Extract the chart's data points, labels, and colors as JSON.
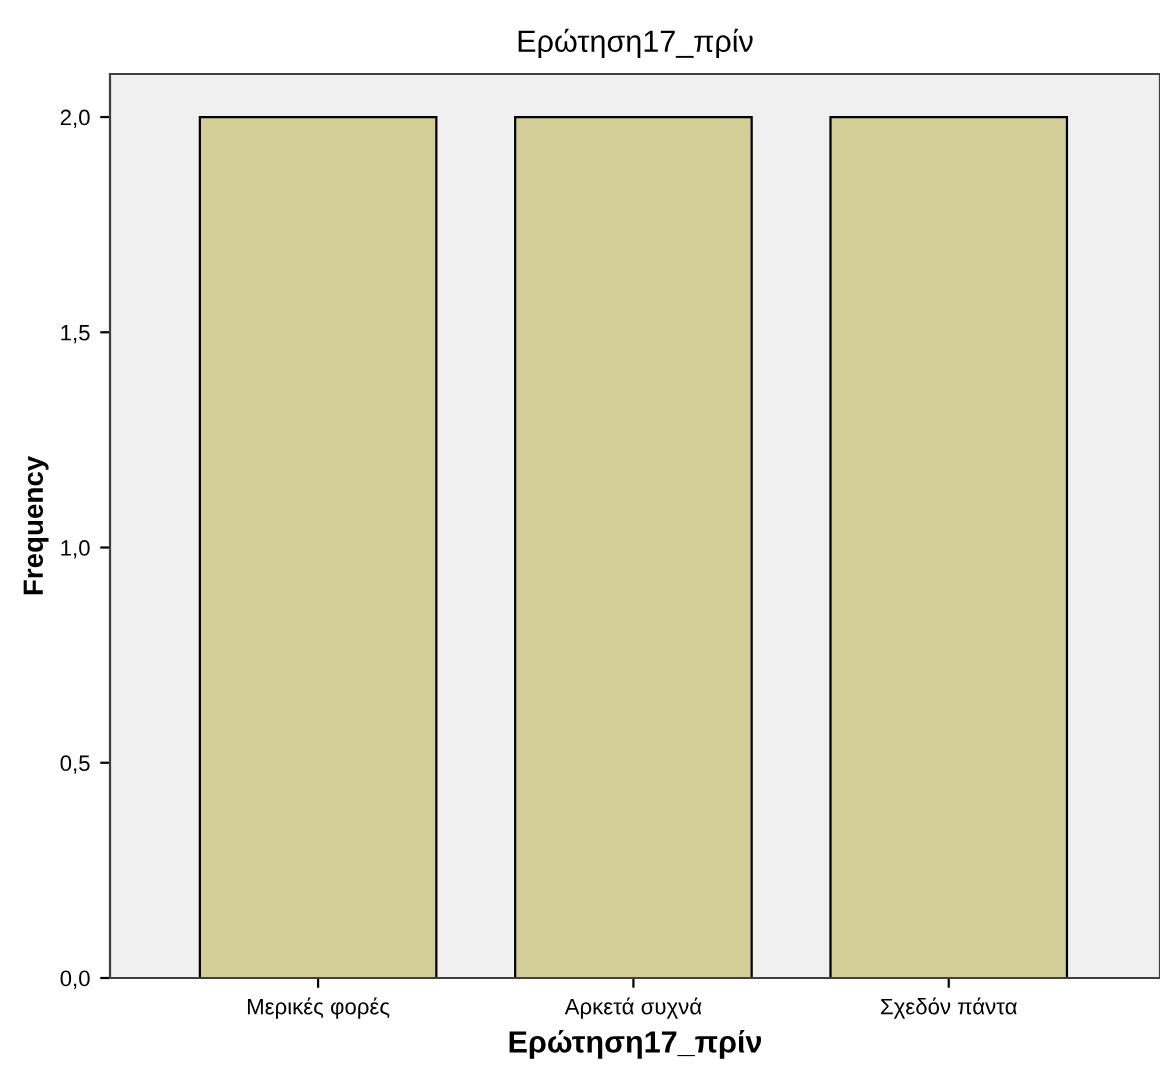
{
  "chart_data": {
    "type": "bar",
    "title": "Ερώτηση17_πρίν",
    "xlabel": "Ερώτηση17_πρίν",
    "ylabel": "Frequency",
    "categories": [
      "Μερικές φορές",
      "Αρκετά συχνά",
      "Σχεδόν πάντα"
    ],
    "values": [
      2,
      2,
      2
    ],
    "color": "#d3cd97",
    "ylim": [
      0,
      2.1
    ],
    "yticks": [
      {
        "value": 0,
        "label": "0,0"
      },
      {
        "value": 0.5,
        "label": "0,5"
      },
      {
        "value": 1,
        "label": "1,0"
      },
      {
        "value": 1.5,
        "label": "1,5"
      },
      {
        "value": 2,
        "label": "2,0"
      }
    ],
    "grid": false,
    "legend": false
  }
}
